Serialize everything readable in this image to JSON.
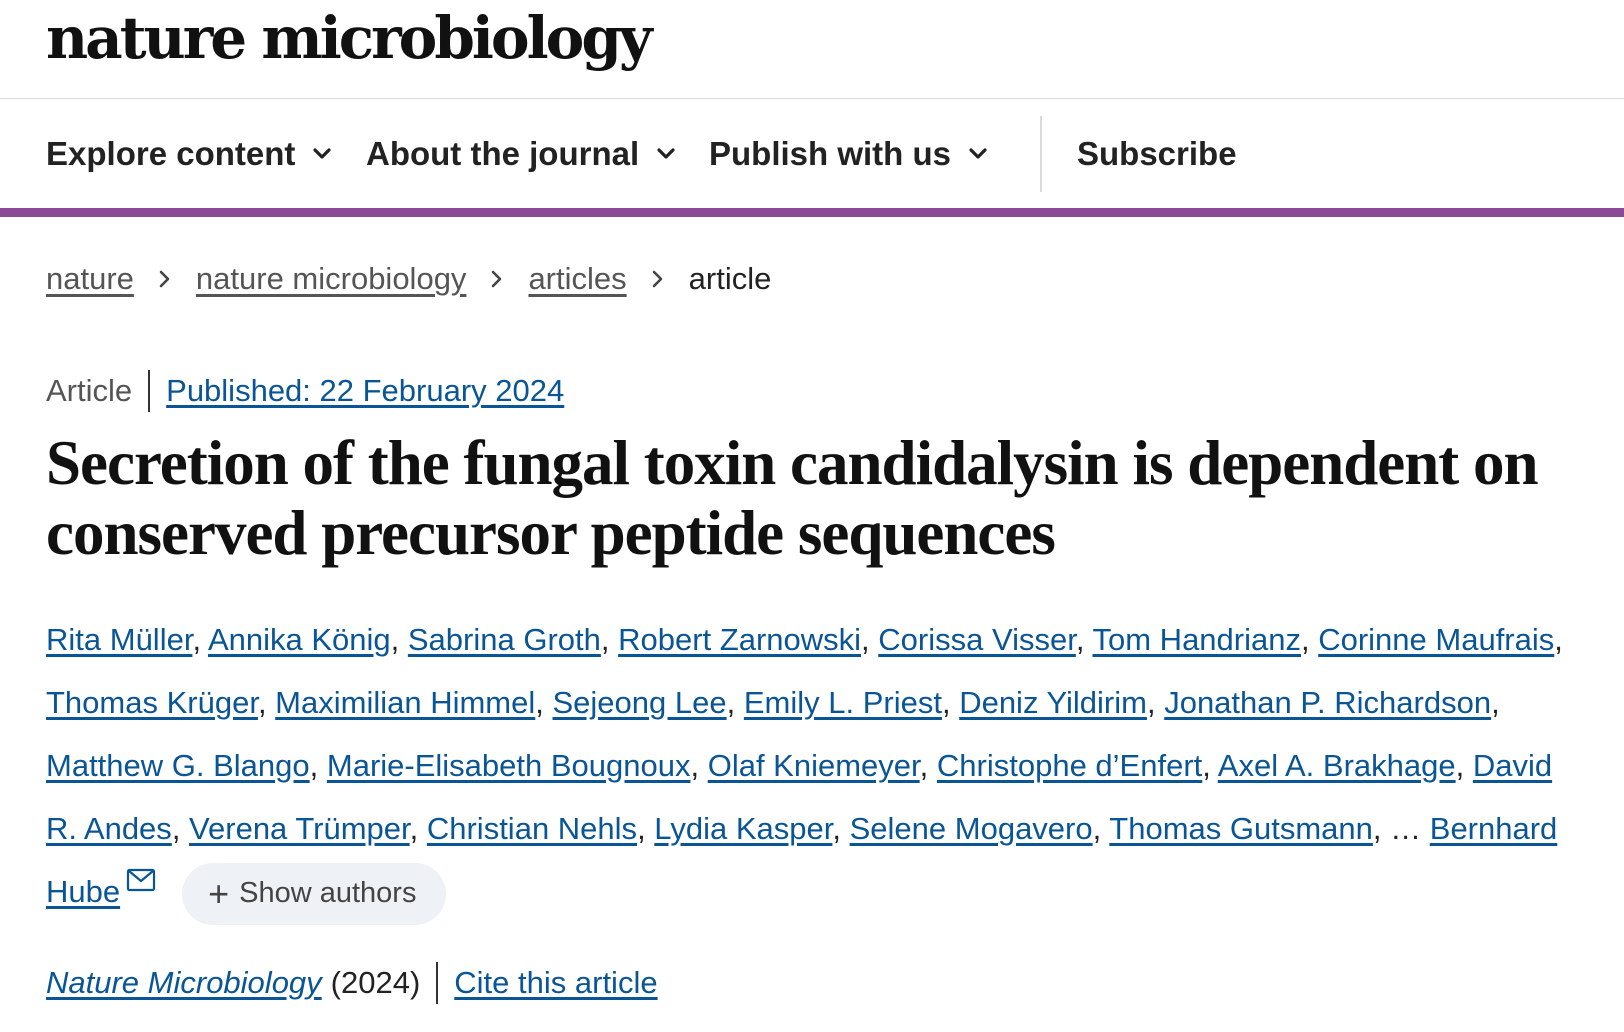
{
  "site": {
    "logo": "nature microbiology"
  },
  "nav": {
    "items": [
      {
        "label": "Explore content"
      },
      {
        "label": "About the journal"
      },
      {
        "label": "Publish with us"
      }
    ],
    "subscribe": "Subscribe"
  },
  "colors": {
    "accent": "#8b4a95",
    "link": "#0a5596"
  },
  "breadcrumb": {
    "items": [
      "nature",
      "nature microbiology",
      "articles"
    ],
    "current": "article"
  },
  "article": {
    "type": "Article",
    "published": "Published: 22 February 2024",
    "title": "Secretion of the fungal toxin candidalysin is dependent on conserved precursor peptide sequences",
    "authors": [
      "Rita Müller",
      "Annika König",
      "Sabrina Groth",
      "Robert Zarnowski",
      "Corissa Visser",
      "Tom Handrianz",
      "Corinne Maufrais",
      "Thomas Krüger",
      "Maximilian Himmel",
      "Sejeong Lee",
      "Emily L. Priest",
      "Deniz Yildirim",
      "Jonathan P. Richardson",
      "Matthew G. Blango",
      "Marie-Elisabeth Bougnoux",
      "Olaf Kniemeyer",
      "Christophe d’Enfert",
      "Axel A. Brakhage",
      "David R. Andes",
      "Verena Trümper",
      "Christian Nehls",
      "Lydia Kasper",
      "Selene Mogavero",
      "Thomas Gutsmann"
    ],
    "ellipsis": "…",
    "last_author": "Bernhard Hube",
    "show_authors": "Show authors",
    "journal": "Nature Microbiology",
    "year": "(2024)",
    "cite": "Cite this article"
  },
  "icons": {
    "nav_chevron": "chevron-down-icon",
    "breadcrumb_sep": "chevron-right-icon",
    "mail": "mail-icon",
    "plus": "plus-icon"
  }
}
